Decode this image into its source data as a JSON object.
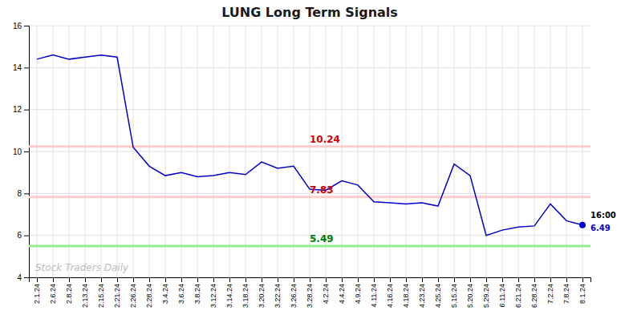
{
  "chart_data": {
    "type": "line",
    "title": "LUNG Long Term Signals",
    "categories": [
      "2.1.24",
      "2.6.24",
      "2.8.24",
      "2.13.24",
      "2.15.24",
      "2.21.24",
      "2.26.24",
      "2.28.24",
      "3.4.24",
      "3.6.24",
      "3.8.24",
      "3.12.24",
      "3.14.24",
      "3.18.24",
      "3.20.24",
      "3.22.24",
      "3.26.24",
      "3.28.24",
      "4.2.24",
      "4.4.24",
      "4.9.24",
      "4.11.24",
      "4.16.24",
      "4.18.24",
      "4.23.24",
      "4.25.24",
      "5.15.24",
      "5.20.24",
      "5.29.24",
      "6.11.24",
      "6.21.24",
      "6.28.24",
      "7.2.24",
      "7.8.24",
      "8.1.24"
    ],
    "values": [
      14.4,
      14.6,
      14.4,
      14.5,
      14.6,
      14.5,
      10.2,
      9.3,
      8.85,
      9.0,
      8.8,
      8.85,
      9.0,
      8.9,
      9.5,
      9.2,
      9.3,
      8.2,
      8.15,
      8.6,
      8.4,
      7.6,
      7.55,
      7.5,
      7.55,
      7.4,
      9.4,
      8.85,
      6.0,
      6.25,
      6.4,
      6.45,
      7.5,
      6.7,
      6.49
    ],
    "color": "#0000cc",
    "ylim": [
      4,
      16
    ],
    "yticks": [
      4,
      6,
      8,
      10,
      12,
      14,
      16
    ],
    "grid": true,
    "reference_lines": [
      {
        "value": 10.24,
        "color": "#ffcccc",
        "label_color": "#cc0000"
      },
      {
        "value": 7.83,
        "color": "#ffcccc",
        "label_color": "#cc0000"
      },
      {
        "value": 5.49,
        "color": "#90ee90",
        "label_color": "#008000"
      }
    ],
    "annotations": [
      {
        "text": "16:00",
        "color": "#000000"
      },
      {
        "text": "6.49",
        "color": "#0000cc"
      }
    ],
    "watermark": {
      "text": "Stock Traders Daily",
      "color": "#bbbbbb"
    }
  }
}
